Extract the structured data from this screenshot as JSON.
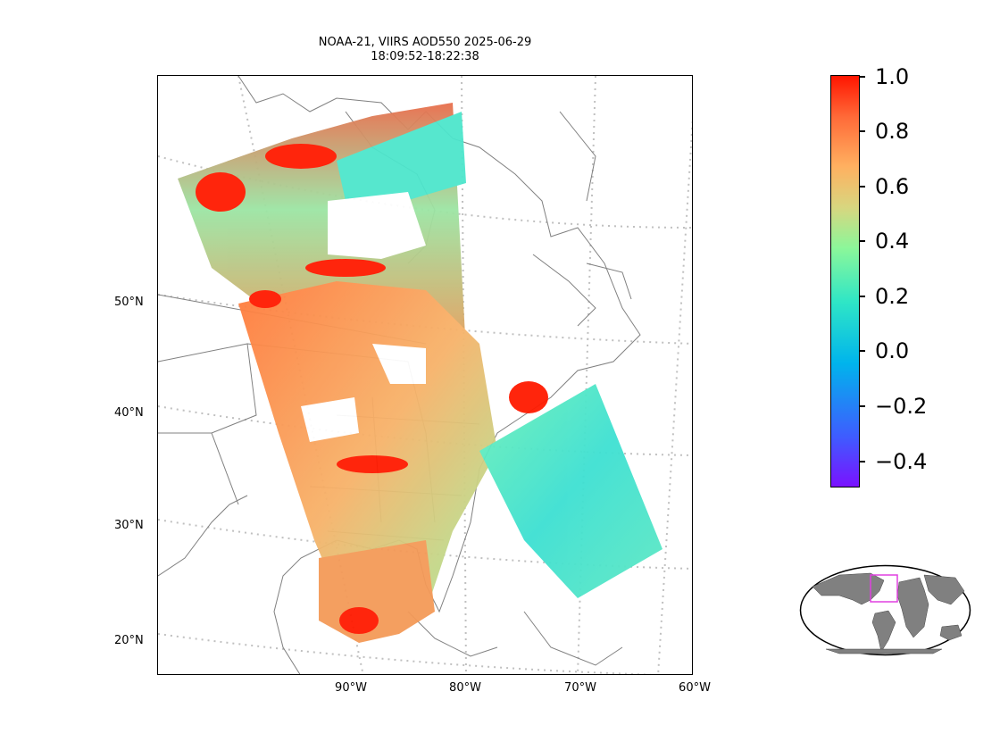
{
  "title": {
    "line1": "NOAA-21, VIIRS AOD550 2025-06-29",
    "line2": "18:09:52-18:22:38"
  },
  "lat_labels": [
    "50°N",
    "40°N",
    "30°N",
    "20°N"
  ],
  "lon_labels": [
    "90°W",
    "80°W",
    "70°W",
    "60°W"
  ],
  "colorbar": {
    "ticks": [
      "1.0",
      "0.8",
      "0.6",
      "0.4",
      "0.2",
      "0.0",
      "−0.2",
      "−0.4"
    ],
    "range": [
      -0.5,
      1.0
    ],
    "colormap": "rainbow",
    "colors": {
      "low": "#7a12ff",
      "mid": "#2fe6c6",
      "high": "#ff1500"
    }
  },
  "map": {
    "projection": "Lambert conformal",
    "extent_lon": [
      -110,
      -60
    ],
    "extent_lat": [
      17,
      62
    ],
    "gridlines": "dotted",
    "grid_color": "#c0c0c0",
    "coastline_color": "#808080"
  },
  "inset": {
    "projection": "Robinson",
    "land_color": "#808080",
    "box_color": "#e040e0"
  }
}
